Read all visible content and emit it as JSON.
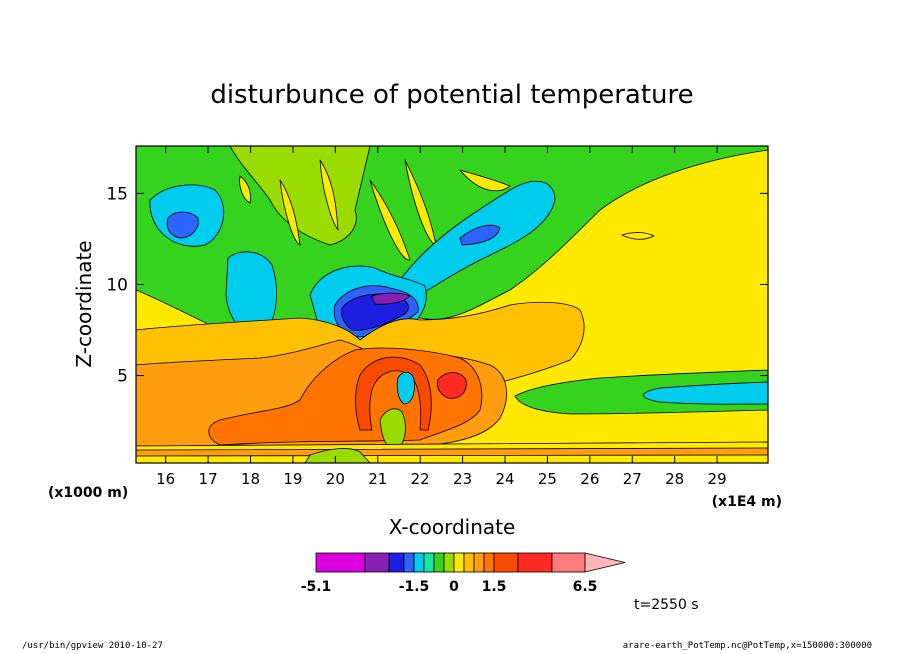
{
  "chart_data": {
    "type": "heatmap",
    "title": "disturbunce of potential temperature",
    "xlabel": "X-coordinate",
    "ylabel": "Z-coordinate",
    "x_units_left": "(x1000 m)",
    "x_units_right": "(x1E4 m)",
    "xlim": [
      15.3,
      30.2
    ],
    "ylim": [
      0.2,
      17.6
    ],
    "x_ticks": [
      16,
      17,
      18,
      19,
      20,
      21,
      22,
      23,
      24,
      25,
      26,
      27,
      28,
      29
    ],
    "y_ticks": [
      5,
      10,
      15
    ],
    "colorbar": {
      "levels": [
        -5.1,
        -4.1,
        -3.5,
        -2.1,
        -1.5,
        -1.1,
        -0.7,
        -0.3,
        0.0,
        0.3,
        0.7,
        1.1,
        1.5,
        2.5,
        4.5,
        6.5
      ],
      "colors": [
        "#dd00dd",
        "#8a1fb4",
        "#1e1ee0",
        "#2d64ff",
        "#00ccee",
        "#19e6a0",
        "#35d21e",
        "#9adb00",
        "#ffe900",
        "#ffc000",
        "#ff9d0e",
        "#ff7300",
        "#f84a00",
        "#ff2a22",
        "#ff7c7c",
        "#ffb5b5"
      ],
      "labels": [
        "-5.1",
        "-1.5",
        "0",
        "1.5",
        "6.5"
      ]
    },
    "annotation": "t=2550 s",
    "field_levels": [
      {
        "level": 0,
        "fill": "#ffe900"
      },
      {
        "level": 1,
        "fill": "#f5ff00"
      },
      {
        "level": 2,
        "fill": "#9adb00"
      },
      {
        "level": 3,
        "fill": "#35d21e"
      },
      {
        "level": 4,
        "fill": "#00ccee"
      },
      {
        "level": 5,
        "fill": "#2d64ff"
      },
      {
        "level": 6,
        "fill": "#1e1ee0"
      },
      {
        "level": 7,
        "fill": "#8a1fb4"
      },
      {
        "level": 8,
        "fill": "#ffc000"
      },
      {
        "level": 9,
        "fill": "#ff9d0e"
      },
      {
        "level": 10,
        "fill": "#ff7300"
      },
      {
        "level": 11,
        "fill": "#f84a00"
      },
      {
        "level": 12,
        "fill": "#ff2a22"
      }
    ]
  },
  "footer": {
    "left": "/usr/bin/gpview  2010-10-27",
    "right": "arare-earth_PotTemp.nc@PotTemp,x=150000:300000"
  }
}
